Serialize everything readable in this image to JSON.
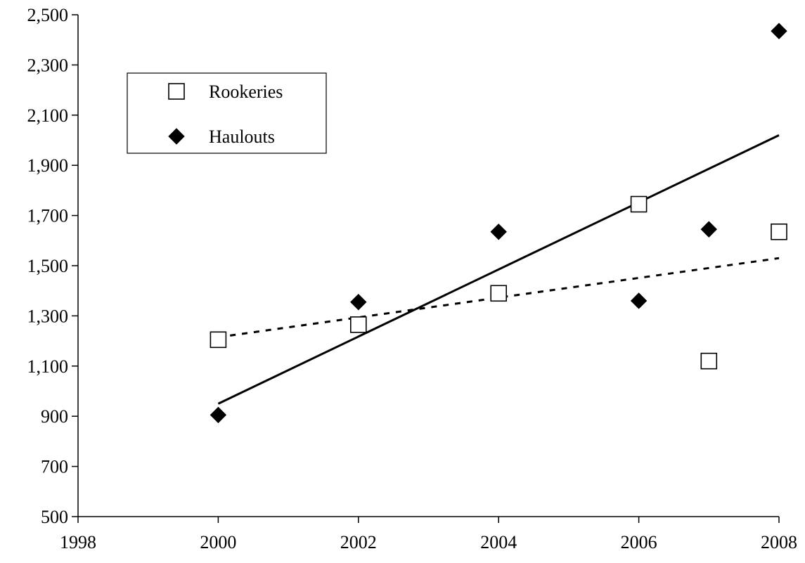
{
  "chart_data": {
    "type": "scatter",
    "title": "",
    "xlabel": "",
    "ylabel": "",
    "xlim": [
      1998,
      2008
    ],
    "ylim": [
      500,
      2500
    ],
    "x_ticks": [
      1998,
      2000,
      2002,
      2004,
      2006,
      2008
    ],
    "y_ticks": [
      500,
      700,
      900,
      1100,
      1300,
      1500,
      1700,
      1900,
      2100,
      2300,
      2500
    ],
    "grid": false,
    "legend_position": "top-left",
    "series": [
      {
        "name": "Rookeries",
        "marker": "open-square",
        "color": "#000000",
        "points": [
          {
            "x": 2000,
            "y": 1205
          },
          {
            "x": 2002,
            "y": 1265
          },
          {
            "x": 2004,
            "y": 1390
          },
          {
            "x": 2006,
            "y": 1745
          },
          {
            "x": 2007,
            "y": 1120
          },
          {
            "x": 2008,
            "y": 1635
          }
        ],
        "trend": {
          "style": "dashed",
          "x": [
            2000,
            2008
          ],
          "y": [
            1215,
            1530
          ]
        }
      },
      {
        "name": "Haulouts",
        "marker": "filled-diamond",
        "color": "#000000",
        "points": [
          {
            "x": 2000,
            "y": 905
          },
          {
            "x": 2002,
            "y": 1355
          },
          {
            "x": 2004,
            "y": 1635
          },
          {
            "x": 2006,
            "y": 1360
          },
          {
            "x": 2007,
            "y": 1645
          },
          {
            "x": 2008,
            "y": 2435
          }
        ],
        "trend": {
          "style": "solid",
          "x": [
            2000,
            2008
          ],
          "y": [
            950,
            2020
          ]
        }
      }
    ]
  }
}
